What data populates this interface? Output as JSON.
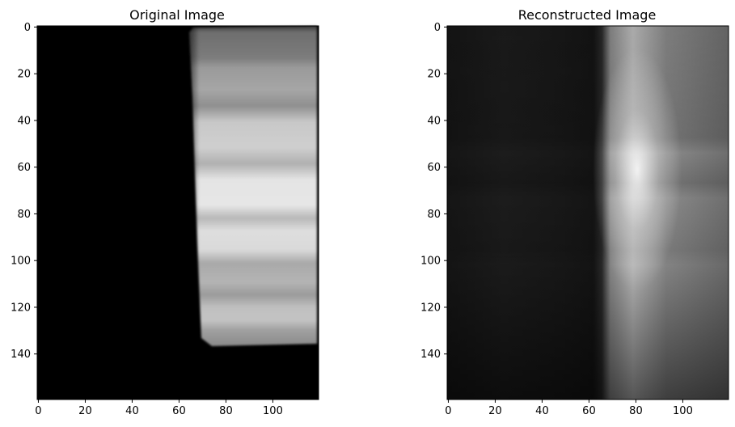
{
  "chart_data": [
    {
      "type": "heatmap",
      "title": "Original Image",
      "colormap": "gray",
      "image_shape": [
        160,
        120
      ],
      "xlim": [
        0,
        119
      ],
      "ylim": [
        159,
        0
      ],
      "xticks": [
        0,
        20,
        40,
        60,
        80,
        100
      ],
      "yticks": [
        0,
        20,
        40,
        60,
        80,
        100,
        120,
        140
      ],
      "xtick_labels": [
        "0",
        "20",
        "40",
        "60",
        "80",
        "100"
      ],
      "ytick_labels": [
        "0",
        "20",
        "40",
        "60",
        "80",
        "100",
        "120",
        "140"
      ],
      "content": "black background on left; bright vertical band of horizontal stripes on right (x ~65–119, y ~0–137), brightest near y≈62"
    },
    {
      "type": "heatmap",
      "title": "Reconstructed Image",
      "colormap": "gray",
      "image_shape": [
        160,
        120
      ],
      "xlim": [
        0,
        119
      ],
      "ylim": [
        159,
        0
      ],
      "xticks": [
        0,
        20,
        40,
        60,
        80,
        100
      ],
      "yticks": [
        0,
        20,
        40,
        60,
        80,
        100,
        120,
        140
      ],
      "xtick_labels": [
        "0",
        "20",
        "40",
        "60",
        "80",
        "100"
      ],
      "ytick_labels": [
        "0",
        "20",
        "40",
        "60",
        "80",
        "100",
        "120",
        "140"
      ],
      "content": "dark blurry left region; bright diffuse column beginning at x≈68, brightest near x≈80, y≈62"
    }
  ]
}
